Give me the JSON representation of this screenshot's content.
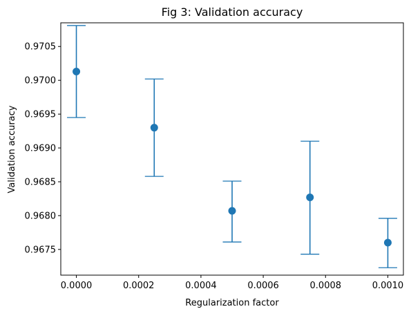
{
  "chart_data": {
    "type": "scatter",
    "title": "Fig 3: Validation accuracy",
    "xlabel": "Regularization factor",
    "ylabel": "Validation accuracy",
    "xlim": [
      -5e-05,
      0.00105
    ],
    "ylim": [
      0.96712,
      0.97085
    ],
    "xticks": [
      0.0,
      0.0002,
      0.0004,
      0.0006,
      0.0008,
      0.001
    ],
    "xtick_labels": [
      "0.0000",
      "0.0002",
      "0.0004",
      "0.0006",
      "0.0008",
      "0.0010"
    ],
    "yticks": [
      0.9675,
      0.968,
      0.9685,
      0.969,
      0.9695,
      0.97,
      0.9705
    ],
    "ytick_labels": [
      "0.9675",
      "0.9680",
      "0.9685",
      "0.9690",
      "0.9695",
      "0.9700",
      "0.9705"
    ],
    "grid": false,
    "color": "#1f77b4",
    "points": [
      {
        "x": 0.0,
        "y": 0.97013,
        "lower": 0.96945,
        "upper": 0.97081
      },
      {
        "x": 0.00025,
        "y": 0.9693,
        "lower": 0.96858,
        "upper": 0.97002
      },
      {
        "x": 0.0005,
        "y": 0.96807,
        "lower": 0.96761,
        "upper": 0.96851
      },
      {
        "x": 0.00075,
        "y": 0.96827,
        "lower": 0.96743,
        "upper": 0.9691
      },
      {
        "x": 0.001,
        "y": 0.9676,
        "lower": 0.96723,
        "upper": 0.96796
      }
    ]
  }
}
